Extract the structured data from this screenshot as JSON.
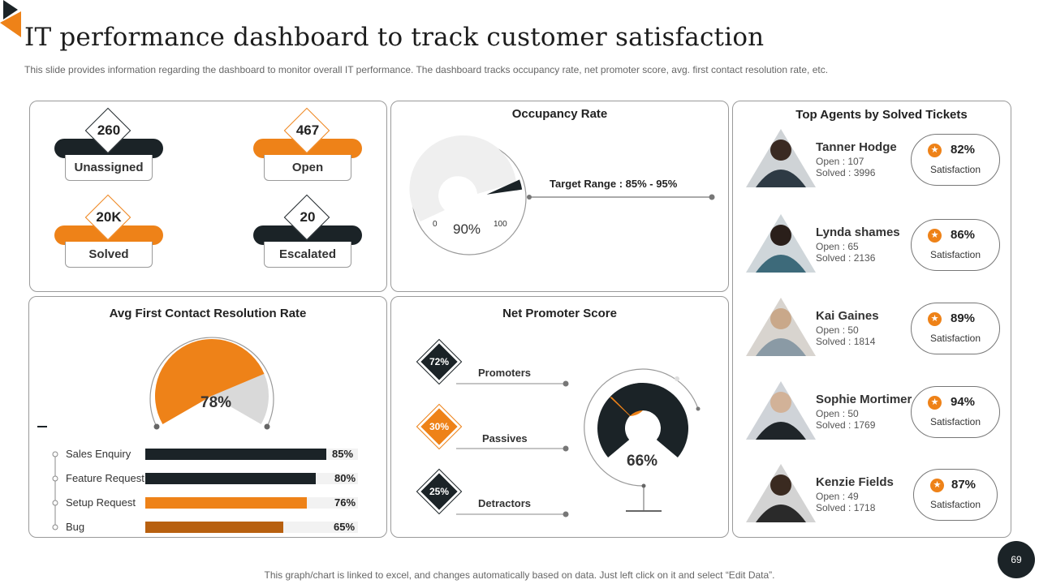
{
  "header": {
    "title": "IT performance dashboard to track customer satisfaction",
    "subtitle": "This slide provides information regarding the dashboard to monitor overall IT  performance. The dashboard tracks occupancy rate, net promoter score, avg. first contact resolution rate, etc."
  },
  "tickets": [
    {
      "value": "260",
      "label": "Unassigned",
      "bar_color": "#1b2327"
    },
    {
      "value": "467",
      "label": "Open",
      "bar_color": "#ee8218"
    },
    {
      "value": "20K",
      "label": "Solved",
      "bar_color": "#ee8218"
    },
    {
      "value": "20",
      "label": "Escalated",
      "bar_color": "#1b2327"
    }
  ],
  "occupancy": {
    "title": "Occupancy Rate",
    "value_label": "90%",
    "value": 90,
    "min_label": "0",
    "max_label": "100",
    "target_label": "Target Range : 85%  - 95%"
  },
  "fcr": {
    "title": "Avg First Contact Resolution Rate",
    "gauge_label": "78%",
    "gauge_value": 78,
    "items": [
      {
        "label": "Sales Enquiry",
        "value_label": "85%",
        "value": 85,
        "color": "#1b2327"
      },
      {
        "label": "Feature Request",
        "value_label": "80%",
        "value": 80,
        "color": "#1b2327"
      },
      {
        "label": "Setup Request",
        "value_label": "76%",
        "value": 76,
        "color": "#ee8218"
      },
      {
        "label": "Bug",
        "value_label": "65%",
        "value": 65,
        "color": "#b8600f"
      }
    ]
  },
  "nps": {
    "title": "Net Promoter Score",
    "gauge_label": "66%",
    "gauge_value": 66,
    "items": [
      {
        "label": "Promoters",
        "value_label": "72%",
        "color": "#1b2327"
      },
      {
        "label": "Passives",
        "value_label": "30%",
        "color": "#ee8218"
      },
      {
        "label": "Detractors",
        "value_label": "25%",
        "color": "#1b2327"
      }
    ]
  },
  "agents": {
    "title": "Top Agents by Solved Tickets",
    "list": [
      {
        "name": "Tanner Hodge",
        "open": "Open : 107",
        "solved": "Solved : 3996",
        "pct": "82%",
        "sat": "Satisfaction"
      },
      {
        "name": "Lynda shames",
        "open": "Open : 65",
        "solved": "Solved : 2136",
        "pct": "86%",
        "sat": "Satisfaction"
      },
      {
        "name": "Kai Gaines",
        "open": "Open : 50",
        "solved": "Solved : 1814",
        "pct": "89%",
        "sat": "Satisfaction"
      },
      {
        "name": "Sophie Mortimer",
        "open": "Open : 50",
        "solved": "Solved : 1769",
        "pct": "94%",
        "sat": "Satisfaction"
      },
      {
        "name": "Kenzie Fields",
        "open": "Open : 49",
        "solved": "Solved : 1718",
        "pct": "87%",
        "sat": "Satisfaction"
      }
    ]
  },
  "footer": {
    "note": "This graph/chart is linked to excel,  and changes automatically based on data. Just left click on it and select “Edit Data”.",
    "page_number": "69"
  },
  "colors": {
    "dark": "#1b2327",
    "orange": "#ee8218",
    "light_gray": "#f2f2f2"
  }
}
